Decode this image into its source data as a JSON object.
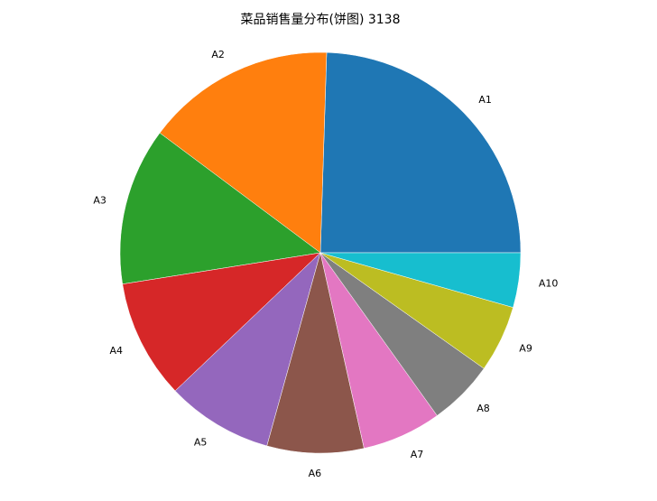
{
  "chart_data": {
    "type": "pie",
    "title": "菜品销售量分布(饼图) 3138",
    "start_angle_deg": 0,
    "direction": "counterclockwise",
    "labels": [
      "A1",
      "A2",
      "A3",
      "A4",
      "A5",
      "A6",
      "A7",
      "A8",
      "A9",
      "A10"
    ],
    "values_percent": [
      24.5,
      15.3,
      12.7,
      9.6,
      8.6,
      7.8,
      6.4,
      5.3,
      5.4,
      4.4
    ],
    "colors": [
      "#1f77b4",
      "#ff7f0e",
      "#2ca02c",
      "#d62728",
      "#9467bd",
      "#8c564b",
      "#e377c2",
      "#7f7f7f",
      "#bcbd22",
      "#17becf"
    ]
  }
}
